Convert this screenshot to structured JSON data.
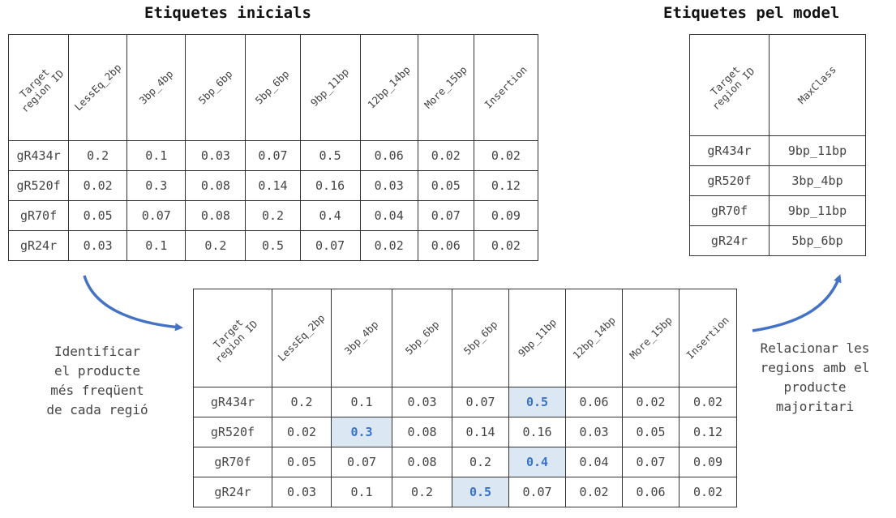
{
  "titles": {
    "initial": "Etiquetes inicials",
    "model": "Etiquetes pel model"
  },
  "captions": {
    "left": [
      "Identificar",
      "el producte",
      "més freqüent",
      "de cada regió"
    ],
    "right": [
      "Relacionar les",
      "regions amb el",
      "producte",
      "majoritari"
    ]
  },
  "columns": [
    "Target region ID",
    "LessEq_2bp",
    "3bp_4bp",
    "5bp_6bp",
    "5bp_6bp",
    "9bp_11bp",
    "12bp_14bp",
    "More_15bp",
    "Insertion"
  ],
  "rows": [
    {
      "id": "gR434r",
      "values": [
        "0.2",
        "0.1",
        "0.03",
        "0.07",
        "0.5",
        "0.06",
        "0.02",
        "0.02"
      ]
    },
    {
      "id": "gR520f",
      "values": [
        "0.02",
        "0.3",
        "0.08",
        "0.14",
        "0.16",
        "0.03",
        "0.05",
        "0.12"
      ]
    },
    {
      "id": "gR70f",
      "values": [
        "0.05",
        "0.07",
        "0.08",
        "0.2",
        "0.4",
        "0.04",
        "0.07",
        "0.09"
      ]
    },
    {
      "id": "gR24r",
      "values": [
        "0.03",
        "0.1",
        "0.2",
        "0.5",
        "0.07",
        "0.02",
        "0.06",
        "0.02"
      ]
    }
  ],
  "model_columns": [
    "Target region ID",
    "MaxClass"
  ],
  "model_rows": [
    {
      "id": "gR434r",
      "max": "9bp_11bp"
    },
    {
      "id": "gR520f",
      "max": "3bp_4bp"
    },
    {
      "id": "gR70f",
      "max": "9bp_11bp"
    },
    {
      "id": "gR24r",
      "max": "5bp_6bp"
    }
  ],
  "highlight": {
    "gR434r": 4,
    "gR520f": 1,
    "gR70f": 4,
    "gR24r": 3
  },
  "colors": {
    "arrow": "#4472c4",
    "highlight_bg": "#dbe7f3",
    "highlight_text": "#3a72c4"
  }
}
